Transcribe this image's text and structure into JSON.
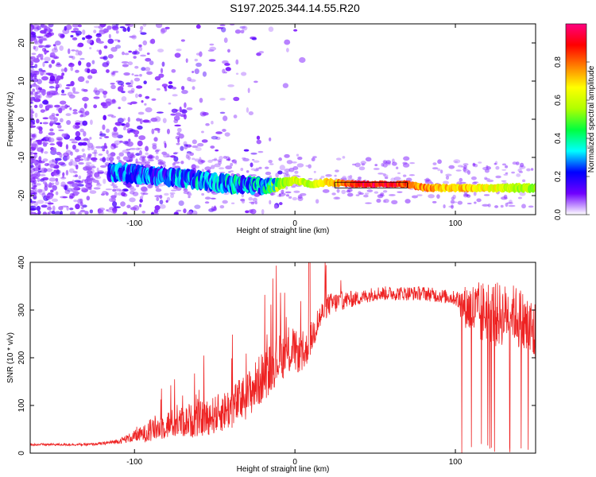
{
  "title": "S197.2025.344.14.55.R20",
  "chart_data": [
    {
      "type": "heatmap",
      "name": "spectrogram",
      "xlabel": "Height of straight line (km)",
      "ylabel": "Frequency (Hz)",
      "xlim": [
        -165,
        150
      ],
      "ylim": [
        -25,
        25
      ],
      "xticks": [
        -100,
        0,
        100
      ],
      "xtick_labels": [
        "-100",
        "0",
        "100"
      ],
      "yticks": [
        -20,
        -10,
        0,
        10,
        20
      ],
      "ytick_labels": [
        "-20",
        "-10",
        "0",
        "10",
        "20"
      ],
      "ridge": {
        "x": [
          -110,
          -80,
          -60,
          -40,
          -20,
          -10,
          0,
          10,
          20,
          40,
          60,
          70,
          80,
          100,
          120,
          140,
          150
        ],
        "y": [
          -14,
          -15,
          -16,
          -17,
          -17.5,
          -17,
          -16,
          -17,
          -16.5,
          -17,
          -17,
          -17,
          -18,
          -18,
          -18,
          -18,
          -18
        ],
        "width_hz": [
          3,
          3,
          3,
          3,
          2.5,
          1.5,
          1,
          1,
          1,
          0.8,
          0.8,
          0.9,
          1,
          1,
          1,
          1.2,
          1.2
        ],
        "amplitude": [
          0.25,
          0.25,
          0.3,
          0.3,
          0.3,
          0.55,
          0.65,
          0.6,
          0.7,
          0.95,
          0.95,
          0.85,
          0.8,
          0.75,
          0.7,
          0.6,
          0.55
        ]
      },
      "noise_region": "scattered low-amplitude speckle across -25..25 Hz for heights below about -100 km, thinning toward 0 km",
      "colorbar": {
        "label": "Normalized spectral amplitude",
        "range": [
          0,
          1
        ],
        "ticks": [
          0.0,
          0.2,
          0.4,
          0.6,
          0.8
        ],
        "tick_labels": [
          "0.0",
          "0.2",
          "0.4",
          "0.6",
          "0.8"
        ],
        "colors": [
          "#ffffff",
          "#7000ff",
          "#0000ff",
          "#00ffff",
          "#00ff40",
          "#b0ff00",
          "#ffff00",
          "#ff8000",
          "#ff0000",
          "#ff0080"
        ]
      }
    },
    {
      "type": "line",
      "name": "snr",
      "xlabel": "Height of straight line (km)",
      "ylabel": "SNR (10 * v/v)",
      "xlim": [
        -165,
        150
      ],
      "ylim": [
        0,
        400
      ],
      "xticks": [
        -100,
        0,
        100
      ],
      "xtick_labels": [
        "-100",
        "0",
        "100"
      ],
      "yticks": [
        0,
        100,
        200,
        300,
        400
      ],
      "ytick_labels": [
        "0",
        "100",
        "200",
        "300",
        "400"
      ],
      "series": [
        {
          "name": "SNR",
          "color": "#ee2222",
          "x": [
            -165,
            -150,
            -140,
            -130,
            -120,
            -110,
            -100,
            -90,
            -80,
            -70,
            -60,
            -50,
            -40,
            -30,
            -20,
            -10,
            0,
            5,
            10,
            15,
            20,
            30,
            40,
            50,
            60,
            70,
            80,
            90,
            100,
            105,
            110,
            115,
            120,
            125,
            130,
            135,
            140,
            145,
            150
          ],
          "y": [
            18,
            18,
            18,
            18,
            20,
            25,
            35,
            45,
            60,
            65,
            70,
            80,
            95,
            120,
            160,
            200,
            215,
            200,
            240,
            280,
            310,
            320,
            325,
            335,
            335,
            335,
            335,
            330,
            325,
            310,
            300,
            290,
            300,
            290,
            290,
            300,
            280,
            260,
            250
          ],
          "amp": [
            5,
            5,
            5,
            5,
            6,
            10,
            25,
            45,
            60,
            65,
            75,
            80,
            90,
            100,
            110,
            100,
            90,
            70,
            70,
            60,
            50,
            40,
            30,
            30,
            30,
            30,
            30,
            30,
            30,
            80,
            120,
            140,
            130,
            140,
            130,
            110,
            140,
            150,
            150
          ]
        }
      ]
    }
  ]
}
